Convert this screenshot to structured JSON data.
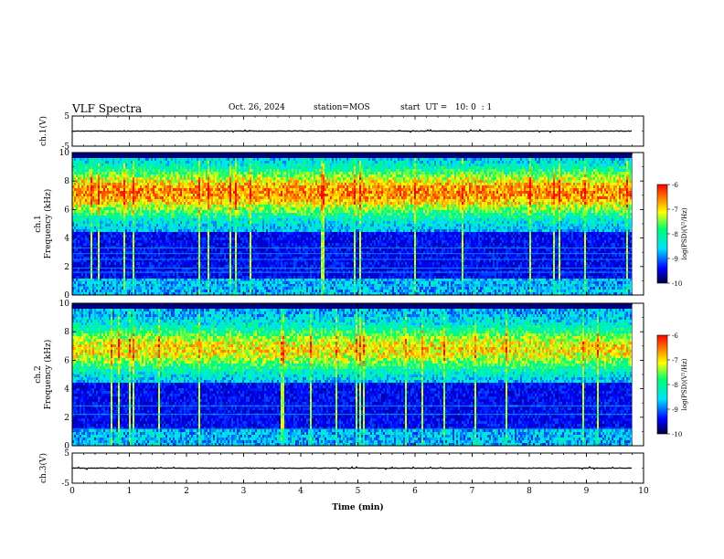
{
  "header": {
    "title": "VLF Spectra",
    "date": "Oct. 26, 2024",
    "station": "station=MOS",
    "start": "start  UT =   10: 0  : 1"
  },
  "chart_data": [
    {
      "type": "line",
      "name": "ch1-waveform",
      "ylabel": "ch.1(V)",
      "ylim": [
        -5,
        5
      ],
      "yticks": [
        "5",
        "-5"
      ],
      "x": [
        0,
        9.8
      ],
      "values": [
        0,
        0
      ]
    },
    {
      "type": "heatmap",
      "name": "ch1-spectrogram",
      "ylabel": "ch.1",
      "ylabel2": "Frequency (kHz)",
      "ylim": [
        0,
        10
      ],
      "yticks": [
        "0",
        "2",
        "4",
        "6",
        "8",
        "10"
      ],
      "colorbar": {
        "label": "log(PSD)(V²/Hz)",
        "range": [
          -10,
          -6
        ],
        "ticks": [
          "-6",
          "-7",
          "-8",
          "-9",
          "-10"
        ]
      }
    },
    {
      "type": "heatmap",
      "name": "ch2-spectrogram",
      "ylabel": "ch.2",
      "ylabel2": "Frequency (kHz)",
      "ylim": [
        0,
        10
      ],
      "yticks": [
        "0",
        "2",
        "4",
        "6",
        "8",
        "10"
      ],
      "colorbar": {
        "label": "log(PSD)(V²/Hz)",
        "range": [
          -10,
          -6
        ],
        "ticks": [
          "-6",
          "-7",
          "-8",
          "-9",
          "-10"
        ]
      }
    },
    {
      "type": "line",
      "name": "ch3-waveform",
      "ylabel": "ch.3(V)",
      "ylim": [
        -5,
        5
      ],
      "yticks": [
        "5",
        "-5"
      ],
      "x": [
        0,
        9.8
      ],
      "values": [
        0,
        0
      ]
    }
  ],
  "xaxis": {
    "label": "Time  (min)",
    "range": [
      0,
      10
    ],
    "ticks": [
      "0",
      "1",
      "2",
      "3",
      "4",
      "5",
      "6",
      "7",
      "8",
      "9",
      "10"
    ]
  },
  "colors": {
    "colormap": [
      "#00003a",
      "#0000ff",
      "#00e0ff",
      "#00ff70",
      "#ffff00",
      "#ff8000",
      "#ff0000"
    ]
  }
}
